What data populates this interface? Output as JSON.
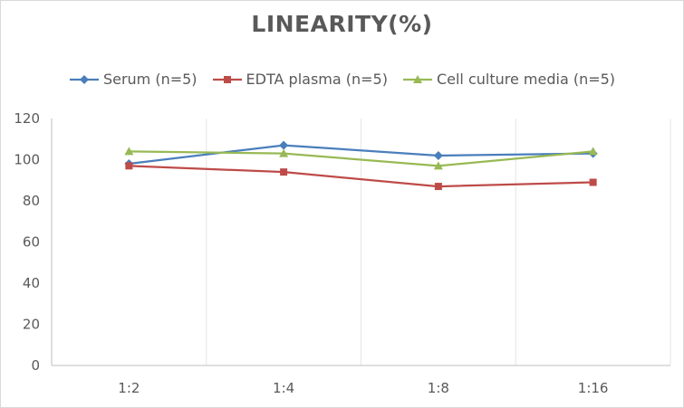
{
  "chart_data": {
    "type": "line",
    "title": "LINEARITY(%)",
    "xlabel": "",
    "ylabel": "",
    "categories": [
      "1:2",
      "1:4",
      "1:8",
      "1:16"
    ],
    "ylim": [
      0,
      120
    ],
    "yticks": [
      0,
      20,
      40,
      60,
      80,
      100,
      120
    ],
    "grid": "vertical",
    "legend_position": "top",
    "series": [
      {
        "name": "Serum (n=5)",
        "values": [
          98,
          107,
          102,
          103
        ],
        "color": "#4a7ebb",
        "marker": "diamond"
      },
      {
        "name": "EDTA plasma (n=5)",
        "values": [
          97,
          94,
          87,
          89
        ],
        "color": "#be4b48",
        "marker": "square"
      },
      {
        "name": "Cell culture media (n=5)",
        "values": [
          104,
          103,
          97,
          104
        ],
        "color": "#98b954",
        "marker": "triangle"
      }
    ]
  }
}
